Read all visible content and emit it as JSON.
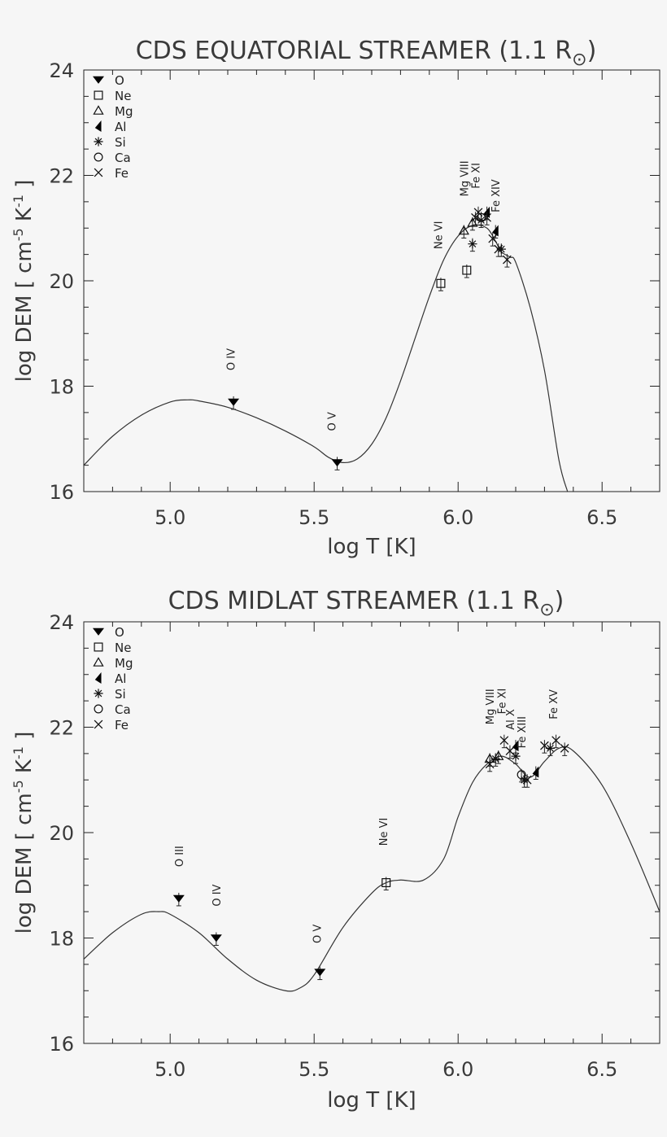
{
  "chart_data": [
    {
      "type": "line",
      "title": "CDS EQUATORIAL STREAMER (1.1 R",
      "title_end": ")",
      "xlabel": "log T [K]",
      "ylabel": "log DEM [ cm",
      "ylabel_exp1": "-5",
      "ylabel_mid": " K",
      "ylabel_exp2": "-1",
      "ylabel_end": " ]",
      "xlim": [
        4.7,
        6.7
      ],
      "ylim": [
        16,
        24
      ],
      "xticks": [
        "5.0",
        "5.5",
        "6.0",
        "6.5"
      ],
      "xtick_values": [
        5.0,
        5.5,
        6.0,
        6.5
      ],
      "yticks": [
        "16",
        "18",
        "20",
        "22",
        "24"
      ],
      "ytick_values": [
        16,
        18,
        20,
        22,
        24
      ],
      "legend_position": "top-left",
      "legend": [
        {
          "label": "O",
          "symbol": "triangle-down-filled"
        },
        {
          "label": "Ne",
          "symbol": "square"
        },
        {
          "label": "Mg",
          "symbol": "triangle"
        },
        {
          "label": "Al",
          "symbol": "flag-filled"
        },
        {
          "label": "Si",
          "symbol": "asterisk"
        },
        {
          "label": "Ca",
          "symbol": "circle"
        },
        {
          "label": "Fe",
          "symbol": "cross"
        }
      ],
      "curve": {
        "x": [
          4.7,
          4.8,
          4.9,
          5.0,
          5.06,
          5.1,
          5.2,
          5.3,
          5.4,
          5.5,
          5.55,
          5.6,
          5.65,
          5.7,
          5.75,
          5.8,
          5.85,
          5.9,
          5.95,
          6.0,
          6.05,
          6.1,
          6.13,
          6.15,
          6.18,
          6.2,
          6.25,
          6.3,
          6.35,
          6.38
        ],
        "y": [
          16.5,
          17.05,
          17.45,
          17.7,
          17.74,
          17.72,
          17.6,
          17.4,
          17.15,
          16.85,
          16.65,
          16.55,
          16.62,
          16.9,
          17.4,
          18.1,
          18.9,
          19.7,
          20.4,
          20.85,
          21.05,
          21.0,
          20.75,
          20.55,
          20.45,
          20.35,
          19.5,
          18.3,
          16.6,
          16.0
        ]
      },
      "series": [
        {
          "name": "O",
          "points": [
            {
              "x": 5.22,
              "y": 17.7
            },
            {
              "x": 5.58,
              "y": 16.55
            }
          ]
        },
        {
          "name": "Ne",
          "points": [
            {
              "x": 5.94,
              "y": 19.95
            },
            {
              "x": 6.03,
              "y": 20.2
            }
          ]
        },
        {
          "name": "Mg",
          "points": [
            {
              "x": 6.02,
              "y": 20.95
            },
            {
              "x": 6.05,
              "y": 21.1
            }
          ]
        },
        {
          "name": "Al",
          "points": [
            {
              "x": 6.1,
              "y": 21.3
            },
            {
              "x": 6.13,
              "y": 20.95
            }
          ]
        },
        {
          "name": "Si",
          "points": [
            {
              "x": 6.05,
              "y": 20.7
            },
            {
              "x": 6.08,
              "y": 21.15
            },
            {
              "x": 6.15,
              "y": 20.6
            }
          ]
        },
        {
          "name": "Ca",
          "points": [
            {
              "x": 6.08,
              "y": 21.2
            }
          ]
        },
        {
          "name": "Fe",
          "points": [
            {
              "x": 6.06,
              "y": 21.2
            },
            {
              "x": 6.07,
              "y": 21.3
            },
            {
              "x": 6.1,
              "y": 21.2
            },
            {
              "x": 6.12,
              "y": 20.8
            },
            {
              "x": 6.14,
              "y": 20.6
            },
            {
              "x": 6.17,
              "y": 20.4
            }
          ]
        }
      ],
      "annotations": [
        {
          "text": "O IV",
          "x": 5.21,
          "y": 18.3
        },
        {
          "text": "O V",
          "x": 5.56,
          "y": 17.15
        },
        {
          "text": "Ne VI",
          "x": 5.93,
          "y": 20.6
        },
        {
          "text": "Mg VIII",
          "x": 6.02,
          "y": 21.6
        },
        {
          "text": "Fe XI",
          "x": 6.06,
          "y": 21.75
        },
        {
          "text": "Fe XIV",
          "x": 6.13,
          "y": 21.3
        }
      ]
    },
    {
      "type": "line",
      "title": "CDS MIDLAT STREAMER (1.1 R",
      "title_end": ")",
      "xlabel": "log T [K]",
      "ylabel": "log DEM [ cm",
      "ylabel_exp1": "-5",
      "ylabel_mid": " K",
      "ylabel_exp2": "-1",
      "ylabel_end": " ]",
      "xlim": [
        4.7,
        6.7
      ],
      "ylim": [
        16,
        24
      ],
      "xticks": [
        "5.0",
        "5.5",
        "6.0",
        "6.5"
      ],
      "xtick_values": [
        5.0,
        5.5,
        6.0,
        6.5
      ],
      "yticks": [
        "16",
        "18",
        "20",
        "22",
        "24"
      ],
      "ytick_values": [
        16,
        18,
        20,
        22,
        24
      ],
      "legend_position": "top-left",
      "legend": [
        {
          "label": "O",
          "symbol": "triangle-down-filled"
        },
        {
          "label": "Ne",
          "symbol": "square"
        },
        {
          "label": "Mg",
          "symbol": "triangle"
        },
        {
          "label": "Al",
          "symbol": "flag-filled"
        },
        {
          "label": "Si",
          "symbol": "asterisk"
        },
        {
          "label": "Ca",
          "symbol": "circle"
        },
        {
          "label": "Fe",
          "symbol": "cross"
        }
      ],
      "curve": {
        "x": [
          4.7,
          4.8,
          4.9,
          4.96,
          5.0,
          5.1,
          5.2,
          5.3,
          5.4,
          5.45,
          5.5,
          5.6,
          5.7,
          5.75,
          5.8,
          5.88,
          5.95,
          6.0,
          6.05,
          6.1,
          6.15,
          6.2,
          6.25,
          6.3,
          6.35,
          6.4,
          6.5,
          6.6,
          6.7
        ],
        "y": [
          17.6,
          18.1,
          18.45,
          18.5,
          18.45,
          18.1,
          17.6,
          17.2,
          17.0,
          17.05,
          17.3,
          18.2,
          18.85,
          19.05,
          19.1,
          19.1,
          19.5,
          20.3,
          20.95,
          21.3,
          21.45,
          21.3,
          21.05,
          21.35,
          21.6,
          21.55,
          20.9,
          19.8,
          18.5
        ]
      },
      "series": [
        {
          "name": "O",
          "points": [
            {
              "x": 5.03,
              "y": 18.75
            },
            {
              "x": 5.16,
              "y": 18.0
            },
            {
              "x": 5.52,
              "y": 17.35
            }
          ]
        },
        {
          "name": "Ne",
          "points": [
            {
              "x": 5.75,
              "y": 19.05
            }
          ]
        },
        {
          "name": "Mg",
          "points": [
            {
              "x": 6.11,
              "y": 21.4
            },
            {
              "x": 6.14,
              "y": 21.45
            }
          ]
        },
        {
          "name": "Al",
          "points": [
            {
              "x": 6.2,
              "y": 21.65
            },
            {
              "x": 6.27,
              "y": 21.15
            }
          ]
        },
        {
          "name": "Si",
          "points": [
            {
              "x": 6.13,
              "y": 21.4
            },
            {
              "x": 6.2,
              "y": 21.45
            },
            {
              "x": 6.23,
              "y": 21.0
            },
            {
              "x": 6.32,
              "y": 21.6
            }
          ]
        },
        {
          "name": "Ca",
          "points": [
            {
              "x": 6.22,
              "y": 21.1
            }
          ]
        },
        {
          "name": "Fe",
          "points": [
            {
              "x": 6.11,
              "y": 21.3
            },
            {
              "x": 6.16,
              "y": 21.75
            },
            {
              "x": 6.18,
              "y": 21.55
            },
            {
              "x": 6.24,
              "y": 21.0
            },
            {
              "x": 6.3,
              "y": 21.65
            },
            {
              "x": 6.34,
              "y": 21.75
            },
            {
              "x": 6.37,
              "y": 21.6
            }
          ]
        }
      ],
      "annotations": [
        {
          "text": "O III",
          "x": 5.03,
          "y": 19.35
        },
        {
          "text": "O IV",
          "x": 5.16,
          "y": 18.6
        },
        {
          "text": "O V",
          "x": 5.51,
          "y": 17.9
        },
        {
          "text": "Ne VI",
          "x": 5.74,
          "y": 19.75
        },
        {
          "text": "Mg VIII",
          "x": 6.11,
          "y": 22.05
        },
        {
          "text": "Fe XI",
          "x": 6.15,
          "y": 22.25
        },
        {
          "text": "Al X",
          "x": 6.18,
          "y": 21.95
        },
        {
          "text": "Fe XIII",
          "x": 6.22,
          "y": 21.6
        },
        {
          "text": "Fe XV",
          "x": 6.33,
          "y": 22.15
        }
      ]
    }
  ]
}
